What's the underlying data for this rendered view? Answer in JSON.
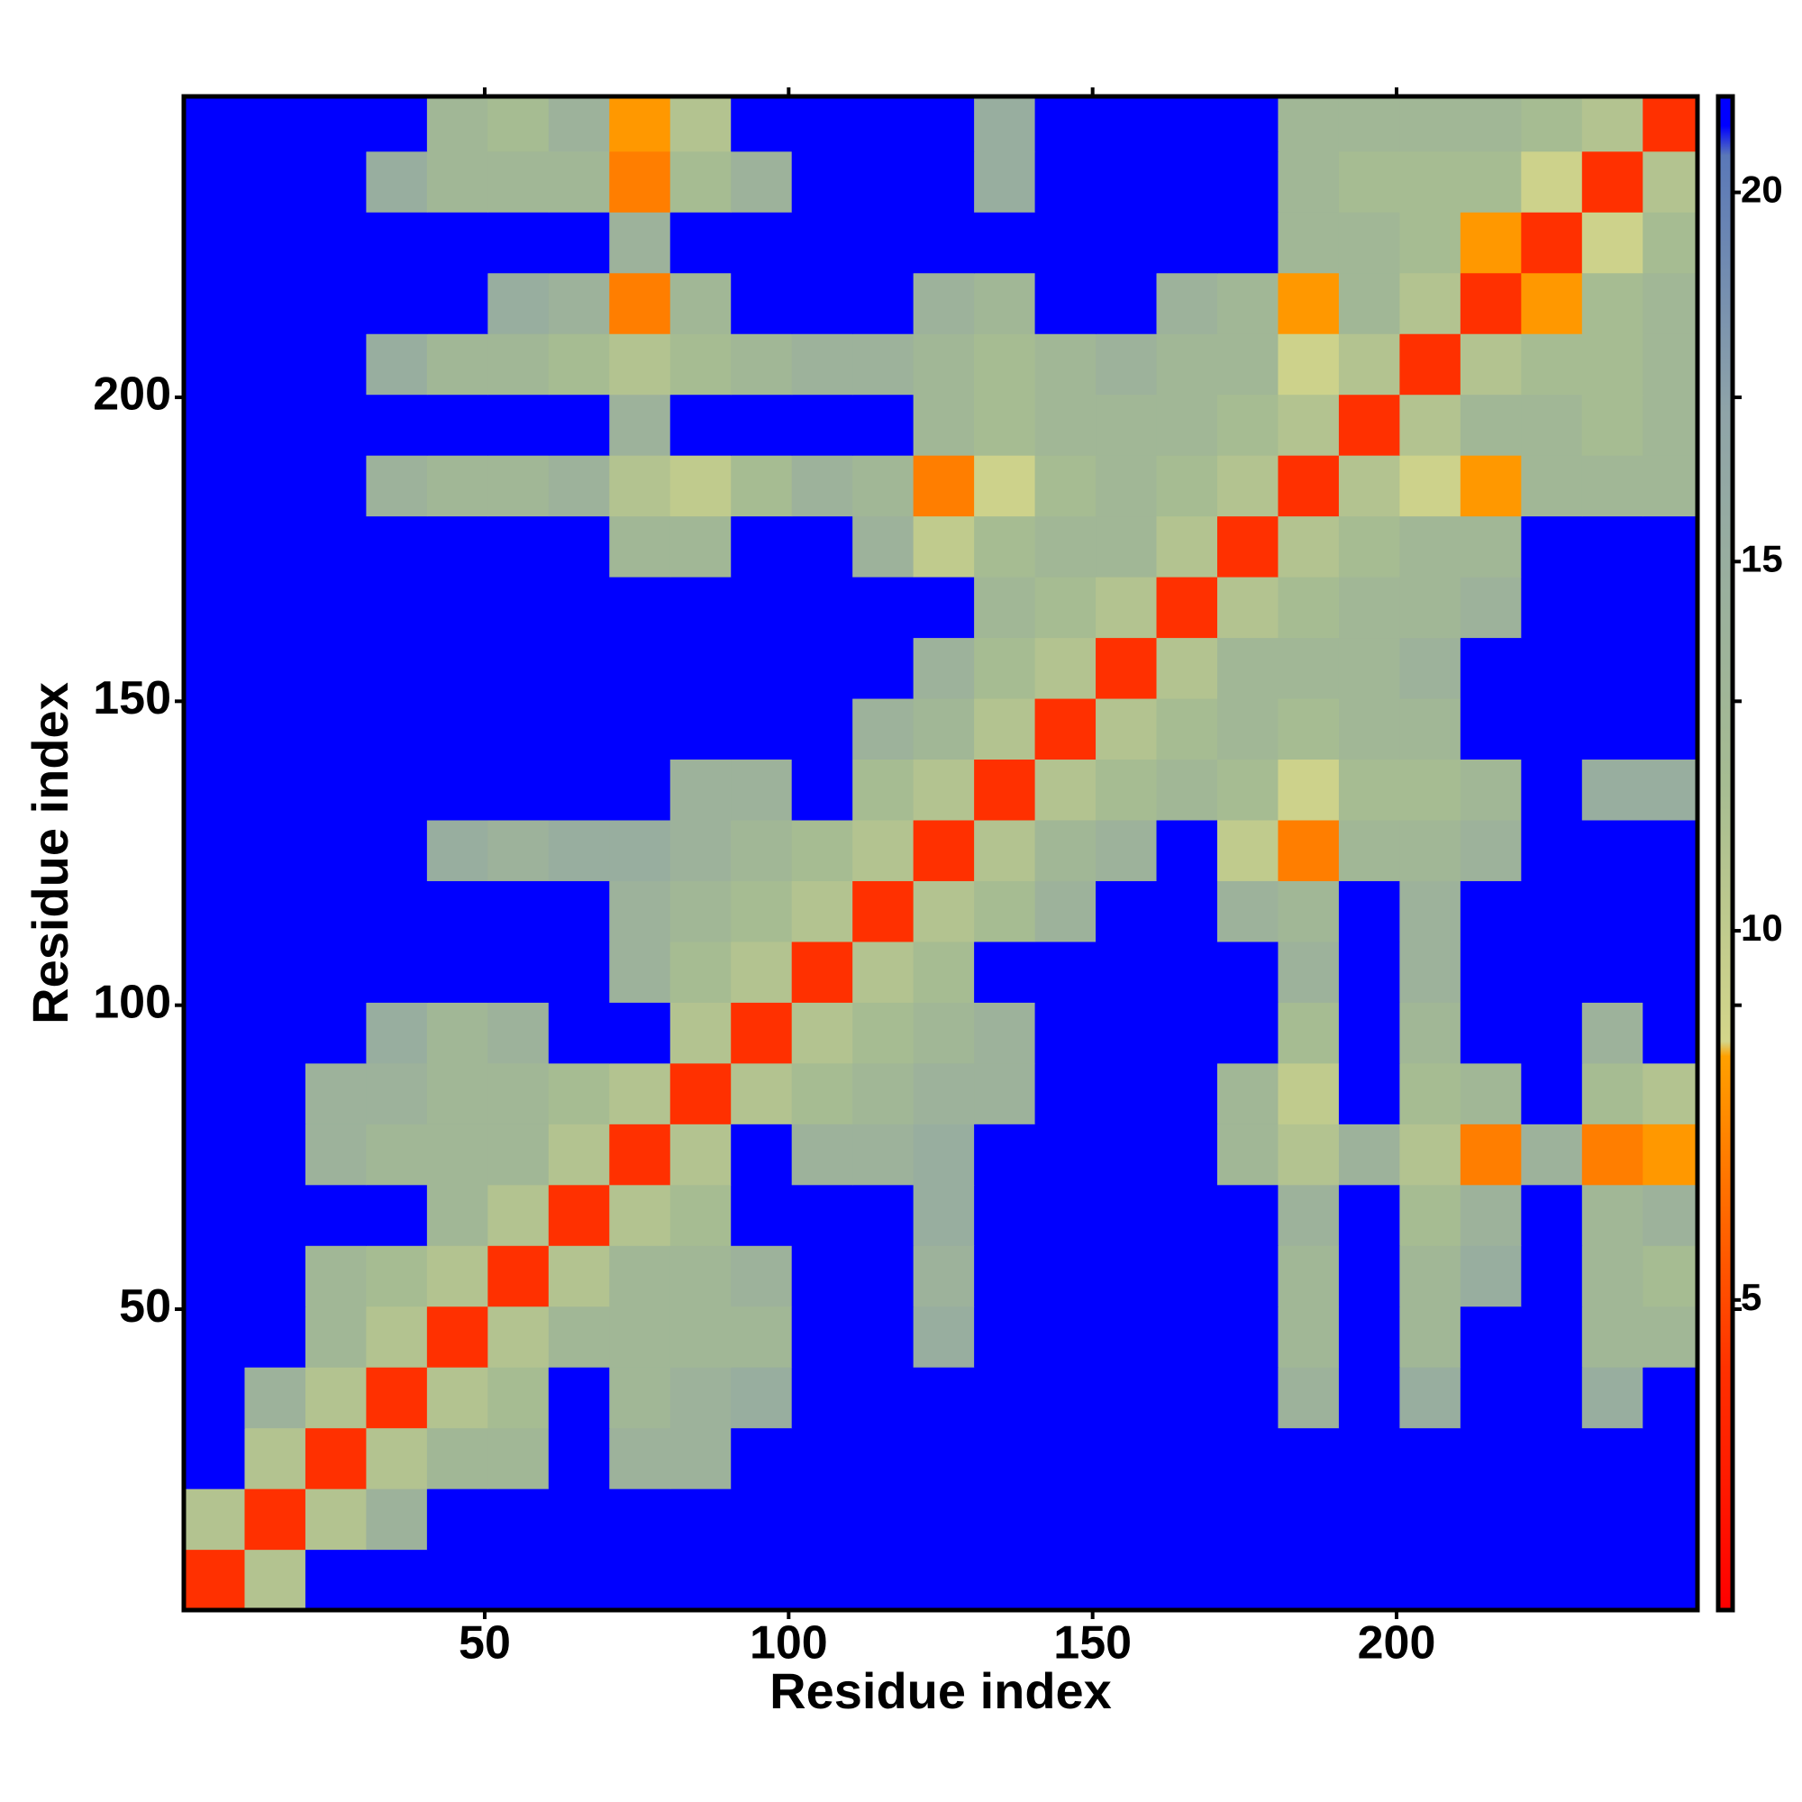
{
  "chart_data": {
    "type": "heatmap",
    "x_label": "Residue index",
    "y_label": "Residue index",
    "bins": [
      0.5,
      10.5,
      20.5,
      30.5,
      40.5,
      50.5,
      60.5,
      70.5,
      80.5,
      90.5,
      100.5,
      110.5,
      120.5,
      130.5,
      140.5,
      150.5,
      160.5,
      170.5,
      180.5,
      190.5,
      200.5,
      210.5,
      220.5,
      230.5,
      240.5,
      249.5
    ],
    "xlim": [
      0.5,
      249.5
    ],
    "ylim": [
      0.5,
      249.5
    ],
    "xticks": [
      50,
      100,
      150,
      200
    ],
    "yticks": [
      50,
      100,
      150,
      200
    ],
    "clim": [
      0.8,
      21.3
    ],
    "cticks": [
      5,
      10,
      15,
      20
    ],
    "colorscale": [
      [
        0.8,
        "#ff0000"
      ],
      [
        4,
        "#ff3000"
      ],
      [
        8.3,
        "#ffa000"
      ],
      [
        8.5,
        "#d4d68a"
      ],
      [
        12,
        "#a6bc92"
      ],
      [
        17,
        "#8fa4a8"
      ],
      [
        20.5,
        "#5a78b8"
      ],
      [
        20.9,
        "#0000ff"
      ],
      [
        21.3,
        "#0000ff"
      ]
    ],
    "values": [
      [
        4,
        11,
        21,
        21,
        21,
        21,
        21,
        21,
        21,
        21,
        21,
        21,
        21,
        21,
        21,
        21,
        21,
        21,
        21,
        21,
        21,
        21,
        21,
        21,
        21
      ],
      [
        11,
        4,
        11,
        14,
        21,
        21,
        21,
        21,
        21,
        21,
        21,
        21,
        21,
        21,
        21,
        21,
        21,
        21,
        21,
        21,
        21,
        21,
        21,
        21,
        21
      ],
      [
        21,
        11,
        4,
        11,
        13,
        13,
        21,
        14,
        14,
        21,
        21,
        21,
        21,
        21,
        21,
        21,
        21,
        21,
        21,
        21,
        21,
        21,
        21,
        21,
        21
      ],
      [
        21,
        14,
        11,
        4,
        11,
        12,
        21,
        13,
        14,
        15,
        21,
        21,
        21,
        21,
        21,
        21,
        21,
        21,
        14,
        21,
        15,
        21,
        21,
        15,
        21
      ],
      [
        21,
        21,
        13,
        11,
        4,
        11,
        13,
        13,
        13,
        13,
        21,
        21,
        15,
        21,
        21,
        21,
        21,
        21,
        13,
        21,
        13,
        21,
        21,
        13,
        13
      ],
      [
        21,
        21,
        13,
        12,
        11,
        4,
        11,
        13,
        13,
        14,
        21,
        21,
        14,
        21,
        21,
        21,
        21,
        21,
        13,
        21,
        13,
        15,
        21,
        13,
        12
      ],
      [
        21,
        21,
        21,
        21,
        13,
        11,
        4,
        11,
        12,
        21,
        21,
        21,
        15,
        21,
        21,
        21,
        21,
        21,
        14,
        21,
        12,
        14,
        21,
        13,
        14
      ],
      [
        21,
        21,
        14,
        13,
        13,
        13,
        11,
        4,
        11,
        21,
        14,
        14,
        15,
        21,
        21,
        21,
        21,
        13,
        11,
        14,
        11,
        7,
        14,
        7,
        8
      ],
      [
        21,
        21,
        14,
        14,
        13,
        13,
        12,
        11,
        4,
        11,
        12,
        13,
        14,
        14,
        21,
        21,
        21,
        13,
        10,
        21,
        12,
        13,
        21,
        12,
        11
      ],
      [
        21,
        21,
        21,
        15,
        13,
        14,
        21,
        21,
        11,
        4,
        11,
        12,
        13,
        14,
        21,
        21,
        21,
        21,
        12,
        21,
        13,
        21,
        21,
        14,
        21
      ],
      [
        21,
        21,
        21,
        21,
        21,
        21,
        21,
        14,
        12,
        11,
        4,
        11,
        12,
        21,
        21,
        21,
        21,
        21,
        14,
        21,
        14,
        21,
        21,
        21,
        21
      ],
      [
        21,
        21,
        21,
        21,
        21,
        21,
        21,
        14,
        13,
        12,
        11,
        4,
        11,
        12,
        14,
        21,
        21,
        14,
        13,
        21,
        14,
        21,
        21,
        21,
        21
      ],
      [
        21,
        21,
        21,
        21,
        15,
        14,
        15,
        15,
        14,
        13,
        12,
        11,
        4,
        11,
        13,
        14,
        21,
        10,
        7,
        13,
        13,
        14,
        21,
        21,
        21
      ],
      [
        21,
        21,
        21,
        21,
        21,
        21,
        21,
        21,
        14,
        14,
        21,
        12,
        11,
        4,
        11,
        12,
        13,
        12,
        9,
        12,
        12,
        13,
        21,
        15,
        15
      ],
      [
        21,
        21,
        21,
        21,
        21,
        21,
        21,
        21,
        21,
        21,
        21,
        14,
        13,
        11,
        4,
        11,
        12,
        13,
        12,
        13,
        13,
        21,
        21,
        21,
        21
      ],
      [
        21,
        21,
        21,
        21,
        21,
        21,
        21,
        21,
        21,
        21,
        21,
        21,
        14,
        12,
        11,
        4,
        11,
        13,
        13,
        13,
        14,
        21,
        21,
        21,
        21
      ],
      [
        21,
        21,
        21,
        21,
        21,
        21,
        21,
        21,
        21,
        21,
        21,
        21,
        21,
        13,
        12,
        11,
        4,
        11,
        12,
        13,
        13,
        14,
        21,
        21,
        21
      ],
      [
        21,
        21,
        21,
        21,
        21,
        21,
        21,
        13,
        13,
        21,
        21,
        14,
        10,
        12,
        13,
        13,
        11,
        4,
        11,
        12,
        13,
        13,
        21,
        21,
        21
      ],
      [
        21,
        21,
        21,
        14,
        13,
        13,
        14,
        11,
        10,
        12,
        14,
        13,
        7,
        9,
        12,
        13,
        12,
        11,
        4,
        11,
        9,
        8,
        13,
        13,
        13
      ],
      [
        21,
        21,
        21,
        21,
        21,
        21,
        21,
        14,
        21,
        21,
        21,
        21,
        13,
        12,
        13,
        13,
        13,
        12,
        11,
        4,
        11,
        13,
        13,
        12,
        13
      ],
      [
        21,
        21,
        21,
        15,
        13,
        13,
        12,
        11,
        12,
        13,
        14,
        14,
        13,
        12,
        13,
        14,
        13,
        13,
        9,
        11,
        4,
        11,
        12,
        12,
        13
      ],
      [
        21,
        21,
        21,
        21,
        21,
        15,
        14,
        7,
        13,
        21,
        21,
        21,
        14,
        13,
        21,
        21,
        14,
        13,
        8,
        13,
        11,
        4,
        8,
        12,
        13
      ],
      [
        21,
        21,
        21,
        21,
        21,
        21,
        21,
        14,
        21,
        21,
        21,
        21,
        21,
        21,
        21,
        21,
        21,
        21,
        13,
        13,
        12,
        8,
        4,
        9,
        12
      ],
      [
        21,
        21,
        21,
        15,
        13,
        13,
        13,
        7,
        12,
        14,
        21,
        21,
        21,
        15,
        21,
        21,
        21,
        21,
        13,
        12,
        12,
        12,
        9,
        4,
        11
      ],
      [
        21,
        21,
        21,
        21,
        13,
        12,
        14,
        8,
        11,
        21,
        21,
        21,
        21,
        15,
        21,
        21,
        21,
        21,
        13,
        13,
        13,
        13,
        12,
        11,
        4
      ]
    ]
  }
}
